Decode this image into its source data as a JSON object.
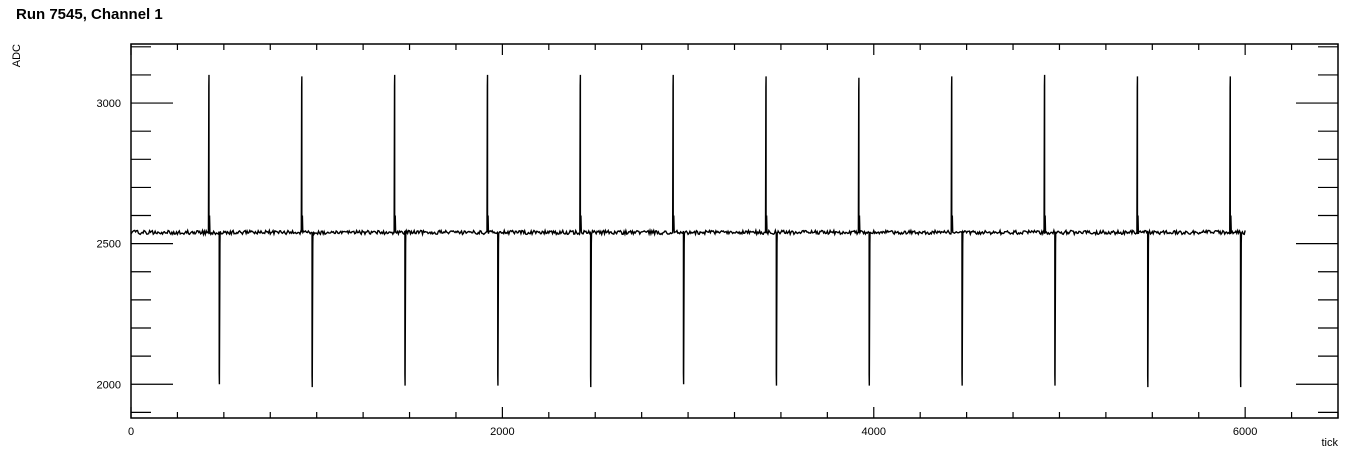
{
  "chart_data": {
    "type": "line",
    "title": "Run 7545, Channel 1",
    "xlabel": "tick",
    "ylabel": "ADC",
    "xlim": [
      0,
      6500
    ],
    "ylim": [
      1880,
      3210
    ],
    "x_ticks": [
      0,
      2000,
      4000,
      6000
    ],
    "y_ticks": [
      2000,
      2500,
      3000
    ],
    "grid": false,
    "legend": "none",
    "colors": {
      "line": "#000000",
      "frame": "#000000",
      "background": "#ffffff"
    },
    "baseline": 2540,
    "x_range_data": [
      0,
      6000
    ],
    "spikes": [
      {
        "up_x": 420,
        "up_peak": 3100,
        "down_x": 475,
        "down_min": 2000
      },
      {
        "up_x": 920,
        "up_peak": 3095,
        "down_x": 975,
        "down_min": 1990
      },
      {
        "up_x": 1420,
        "up_peak": 3100,
        "down_x": 1475,
        "down_min": 1995
      },
      {
        "up_x": 1920,
        "up_peak": 3100,
        "down_x": 1975,
        "down_min": 1995
      },
      {
        "up_x": 2420,
        "up_peak": 3100,
        "down_x": 2475,
        "down_min": 1990
      },
      {
        "up_x": 2920,
        "up_peak": 3100,
        "down_x": 2975,
        "down_min": 2000
      },
      {
        "up_x": 3420,
        "up_peak": 3095,
        "down_x": 3475,
        "down_min": 1995
      },
      {
        "up_x": 3920,
        "up_peak": 3090,
        "down_x": 3975,
        "down_min": 1995
      },
      {
        "up_x": 4420,
        "up_peak": 3095,
        "down_x": 4475,
        "down_min": 1995
      },
      {
        "up_x": 4920,
        "up_peak": 3100,
        "down_x": 4975,
        "down_min": 1995
      },
      {
        "up_x": 5420,
        "up_peak": 3095,
        "down_x": 5475,
        "down_min": 1990
      },
      {
        "up_x": 5920,
        "up_peak": 3095,
        "down_x": 5975,
        "down_min": 1990
      }
    ]
  }
}
